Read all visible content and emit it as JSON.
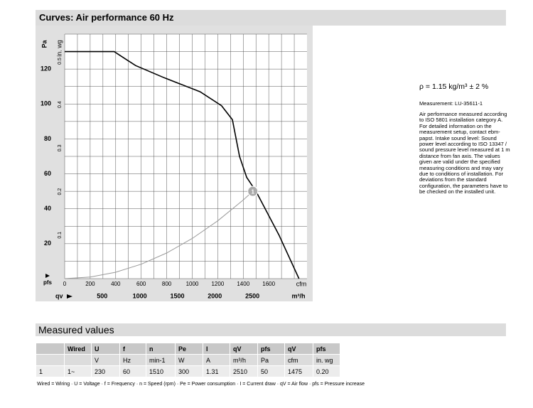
{
  "header": {
    "title": "Curves: Air performance 60 Hz"
  },
  "chart_data": {
    "type": "line",
    "ylabel": "Pa",
    "y2label": "in. wg",
    "y_symbol": "pfs",
    "x_symbol": "qv",
    "xlabel": "cfm",
    "x2label": "m³/h",
    "xlim": [
      0,
      1900
    ],
    "xticks": [
      0,
      200,
      400,
      600,
      800,
      1000,
      1200,
      1400,
      1600
    ],
    "x2lim": [
      0,
      3228
    ],
    "x2ticks": [
      500,
      1000,
      1500,
      2000,
      2500
    ],
    "ylim": [
      0,
      140
    ],
    "yticks": [
      20,
      40,
      60,
      80,
      100,
      120
    ],
    "y2lim": [
      0,
      0.562
    ],
    "y2ticks": [
      0.1,
      0.2,
      0.3,
      0.4,
      0.5
    ],
    "xgrid": [
      0,
      100,
      200,
      300,
      400,
      500,
      600,
      700,
      800,
      900,
      1000,
      1100,
      1200,
      1300,
      1400,
      1500,
      1600,
      1700,
      1800
    ],
    "ygrid": [
      0,
      10,
      20,
      30,
      40,
      50,
      60,
      70,
      80,
      90,
      100,
      110,
      120,
      130,
      140
    ],
    "series": [
      {
        "color": "#000000",
        "x": [
          0,
          388,
          472,
          556,
          781,
          1062,
          1230,
          1315,
          1371,
          1427,
          1500,
          1680,
          1837
        ],
        "values": [
          130,
          130,
          126,
          122,
          115,
          107,
          99,
          91,
          70,
          58,
          50,
          25,
          0
        ]
      },
      {
        "color": "#999999",
        "x": [
          0,
          200,
          400,
          600,
          800,
          1000,
          1200,
          1400,
          1475
        ],
        "values": [
          0,
          0.92,
          3.68,
          8.27,
          14.7,
          23,
          33.1,
          45,
          50
        ]
      }
    ],
    "annotations": [
      {
        "label": "1",
        "x": 1475,
        "y": 50
      }
    ]
  },
  "notes": {
    "density": "ρ = 1.15 kg/m³ ± 2 %",
    "measurement": "Measurement: LU-35611-1",
    "text": "Air performance measured according to ISO 5801 installation category A. For detailed information on the measurement setup, contact ebm-papst. Intake sound level: Sound power level according to ISO 13347 / sound pressure level measured at 1 m distance from fan axis. The values given are valid under the specified measuring conditions and may vary due to conditions of installation. For deviations from the standard configuration, the parameters have to be checked on the installed unit."
  },
  "table": {
    "title": "Measured values",
    "rows": [
      [
        null,
        "Wired",
        "U",
        "f",
        "n",
        "Pe",
        "I",
        "qV",
        "pfs",
        "qV",
        "pfs"
      ],
      [
        null,
        null,
        "V",
        "Hz",
        "min-1",
        "W",
        "A",
        "m³/h",
        "Pa",
        "cfm",
        "in. wg"
      ],
      [
        "1",
        "1~",
        "230",
        "60",
        "1510",
        "300",
        "1.31",
        "2510",
        "50",
        "1475",
        "0.20"
      ]
    ],
    "legend": "Wired = Wiring · U = Voltage · f = Frequency · n = Speed (rpm) · Pe = Power consumption · I = Current draw · qV = Air flow · pfs = Pressure increase"
  }
}
